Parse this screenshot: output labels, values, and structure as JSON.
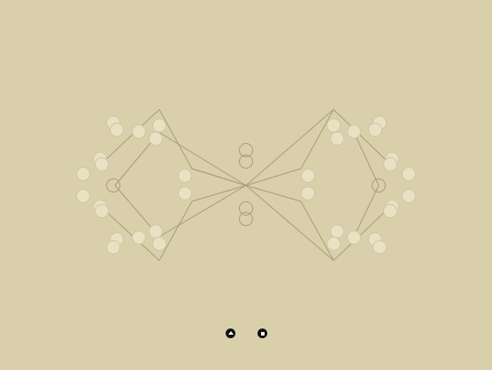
{
  "puzzle": {
    "edge_color": "#a89c7c",
    "filled_node_color": "#e8e1c4",
    "empty_node_color": "#a89c7c",
    "background_color": "#d9cfab"
  },
  "controls": {
    "prev_icon": "triangle-up-icon",
    "next_icon": "square-stop-icon",
    "button_color": "#111111"
  }
}
